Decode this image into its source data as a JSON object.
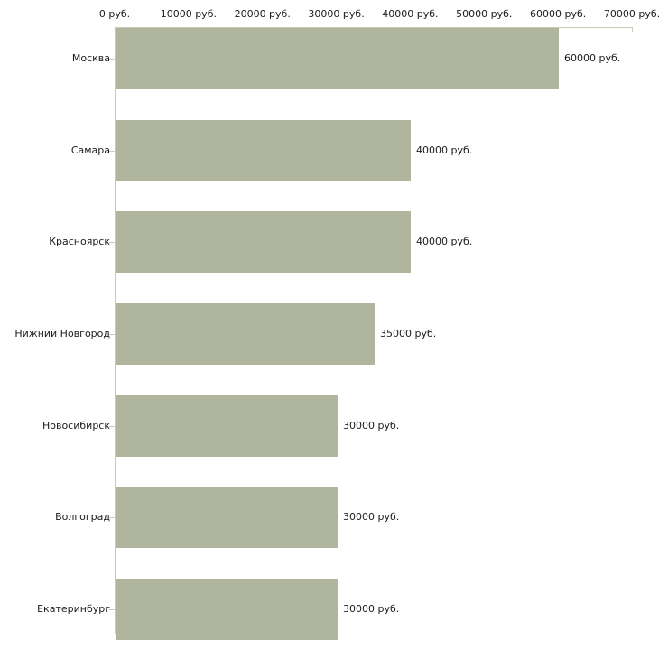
{
  "chart_data": {
    "type": "bar",
    "orientation": "horizontal",
    "title": "",
    "xlabel": "",
    "ylabel": "",
    "categories": [
      "Москва",
      "Самара",
      "Красноярск",
      "Нижний Новгород",
      "Новосибирск",
      "Волгоград",
      "Екатеринбург"
    ],
    "values": [
      60000,
      40000,
      40000,
      35000,
      30000,
      30000,
      30000
    ],
    "value_labels": [
      "60000 руб.",
      "40000 руб.",
      "40000 руб.",
      "35000 руб.",
      "30000 руб.",
      "30000 руб.",
      "30000 руб."
    ],
    "x_axis": {
      "position": "top",
      "min": 0,
      "max": 70000,
      "tick_values": [
        0,
        10000,
        20000,
        30000,
        40000,
        50000,
        60000,
        70000
      ],
      "tick_labels": [
        "0 руб.",
        "10000 руб.",
        "20000 руб.",
        "30000 руб.",
        "40000 руб.",
        "50000 руб.",
        "60000 руб.",
        "70000 руб."
      ]
    },
    "grid": false,
    "legend": false,
    "colors": {
      "bar": "#b0b69d",
      "axis_line": "#c6c6c6",
      "tick_mark": "#c9cbb8",
      "text": "#1c1c1c",
      "background": "#ffffff"
    }
  }
}
